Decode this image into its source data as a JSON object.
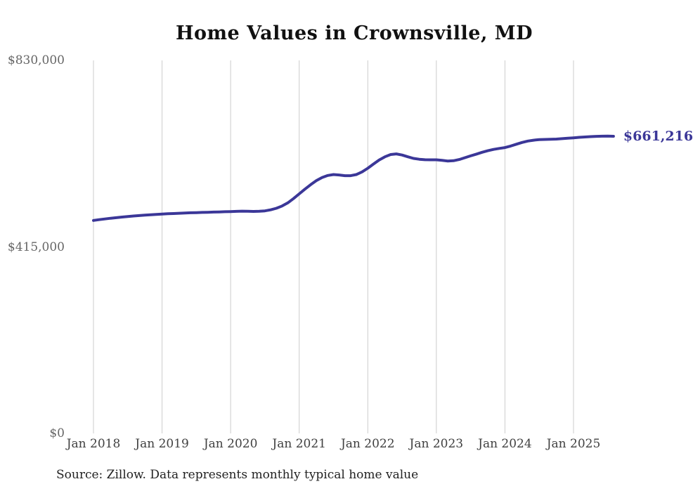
{
  "title": "Home Values in Crownsville, MD",
  "source": "Source: Zillow. Data represents monthly typical home value",
  "colors": {
    "line": "#3b3798",
    "end_label": "#3b3798",
    "grid": "#cccccc",
    "title_text": "#111111",
    "y_label_text": "#666666",
    "x_label_text": "#404040",
    "source_text": "#222222"
  },
  "chart_data": {
    "type": "line",
    "title": "Home Values in Crownsville, MD",
    "xlabel": "",
    "ylabel": "",
    "ylim": [
      0,
      830000
    ],
    "grid": "vertical-only",
    "legend": "none",
    "last_value_label": "$661,216",
    "last_value": 661216,
    "x_ticks": [
      "Jan 2018",
      "Jan 2019",
      "Jan 2020",
      "Jan 2021",
      "Jan 2022",
      "Jan 2023",
      "Jan 2024",
      "Jan 2025"
    ],
    "y_ticks": [
      {
        "label": "$0",
        "value": 0
      },
      {
        "label": "$415,000",
        "value": 415000
      },
      {
        "label": "$830,000",
        "value": 830000
      }
    ],
    "x_start": "2018-01",
    "x_end": "2025-08",
    "frequency": "monthly",
    "series": [
      {
        "name": "Typical home value",
        "values": [
          474000,
          475600,
          477200,
          478700,
          480100,
          481400,
          482600,
          483700,
          484700,
          485600,
          486400,
          487200,
          488000,
          488700,
          489300,
          489900,
          490400,
          490900,
          491300,
          491700,
          492100,
          492500,
          492900,
          493300,
          493700,
          494100,
          494500,
          494300,
          494000,
          494300,
          495200,
          497500,
          501000,
          506000,
          513000,
          522500,
          533000,
          543500,
          553500,
          562500,
          569500,
          574000,
          576000,
          575000,
          573500,
          573500,
          576000,
          582000,
          590000,
          599500,
          608500,
          615500,
          620500,
          622000,
          619500,
          615500,
          612000,
          610000,
          609000,
          608800,
          608800,
          607500,
          606200,
          606800,
          609500,
          613500,
          617500,
          621500,
          625500,
          629000,
          632000,
          634200,
          636000,
          639500,
          643500,
          647500,
          650500,
          652500,
          653800,
          654200,
          654400,
          655000,
          655800,
          656800,
          657800,
          658800,
          659700,
          660400,
          661000,
          661400,
          661500,
          661216
        ]
      }
    ]
  }
}
